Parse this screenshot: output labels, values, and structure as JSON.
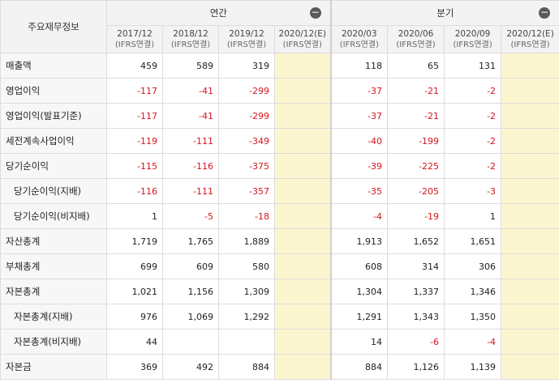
{
  "header": {
    "row_title": "주요재무정보",
    "annual_label": "연간",
    "quarterly_label": "분기",
    "collapse_symbol": "−"
  },
  "periods": [
    {
      "date": "2017/12",
      "basis": "(IFRS연결)"
    },
    {
      "date": "2018/12",
      "basis": "(IFRS연결)"
    },
    {
      "date": "2019/12",
      "basis": "(IFRS연결)"
    },
    {
      "date": "2020/12(E)",
      "basis": "(IFRS연결)"
    },
    {
      "date": "2020/03",
      "basis": "(IFRS연결)"
    },
    {
      "date": "2020/06",
      "basis": "(IFRS연결)"
    },
    {
      "date": "2020/09",
      "basis": "(IFRS연결)"
    },
    {
      "date": "2020/12(E)",
      "basis": "(IFRS연결)"
    }
  ],
  "rows": [
    {
      "label": "매출액",
      "values": [
        "459",
        "589",
        "319",
        "",
        "118",
        "65",
        "131",
        ""
      ]
    },
    {
      "label": "영업이익",
      "values": [
        "-117",
        "-41",
        "-299",
        "",
        "-37",
        "-21",
        "-2",
        ""
      ]
    },
    {
      "label": "영업이익(발표기준)",
      "values": [
        "-117",
        "-41",
        "-299",
        "",
        "-37",
        "-21",
        "-2",
        ""
      ]
    },
    {
      "label": "세전계속사업이익",
      "values": [
        "-119",
        "-111",
        "-349",
        "",
        "-40",
        "-199",
        "-2",
        ""
      ]
    },
    {
      "label": "당기순이익",
      "values": [
        "-115",
        "-116",
        "-375",
        "",
        "-39",
        "-225",
        "-2",
        ""
      ]
    },
    {
      "label": "당기순이익(지배)",
      "values": [
        "-116",
        "-111",
        "-357",
        "",
        "-35",
        "-205",
        "-3",
        ""
      ]
    },
    {
      "label": "당기순이익(비지배)",
      "values": [
        "1",
        "-5",
        "-18",
        "",
        "-4",
        "-19",
        "1",
        ""
      ]
    },
    {
      "label": "자산총계",
      "values": [
        "1,719",
        "1,765",
        "1,889",
        "",
        "1,913",
        "1,652",
        "1,651",
        ""
      ]
    },
    {
      "label": "부채총계",
      "values": [
        "699",
        "609",
        "580",
        "",
        "608",
        "314",
        "306",
        ""
      ]
    },
    {
      "label": "자본총계",
      "values": [
        "1,021",
        "1,156",
        "1,309",
        "",
        "1,304",
        "1,337",
        "1,346",
        ""
      ]
    },
    {
      "label": "자본총계(지배)",
      "values": [
        "976",
        "1,069",
        "1,292",
        "",
        "1,291",
        "1,343",
        "1,350",
        ""
      ]
    },
    {
      "label": "자본총계(비지배)",
      "values": [
        "44",
        "",
        "",
        "",
        "14",
        "-6",
        "-4",
        ""
      ]
    },
    {
      "label": "자본금",
      "values": [
        "369",
        "492",
        "884",
        "",
        "884",
        "1,126",
        "1,139",
        ""
      ]
    }
  ],
  "sub_rows": [
    5,
    6,
    10,
    11
  ],
  "colors": {
    "negative": "#d5141c",
    "estimate_bg": "#fbf6d0"
  }
}
